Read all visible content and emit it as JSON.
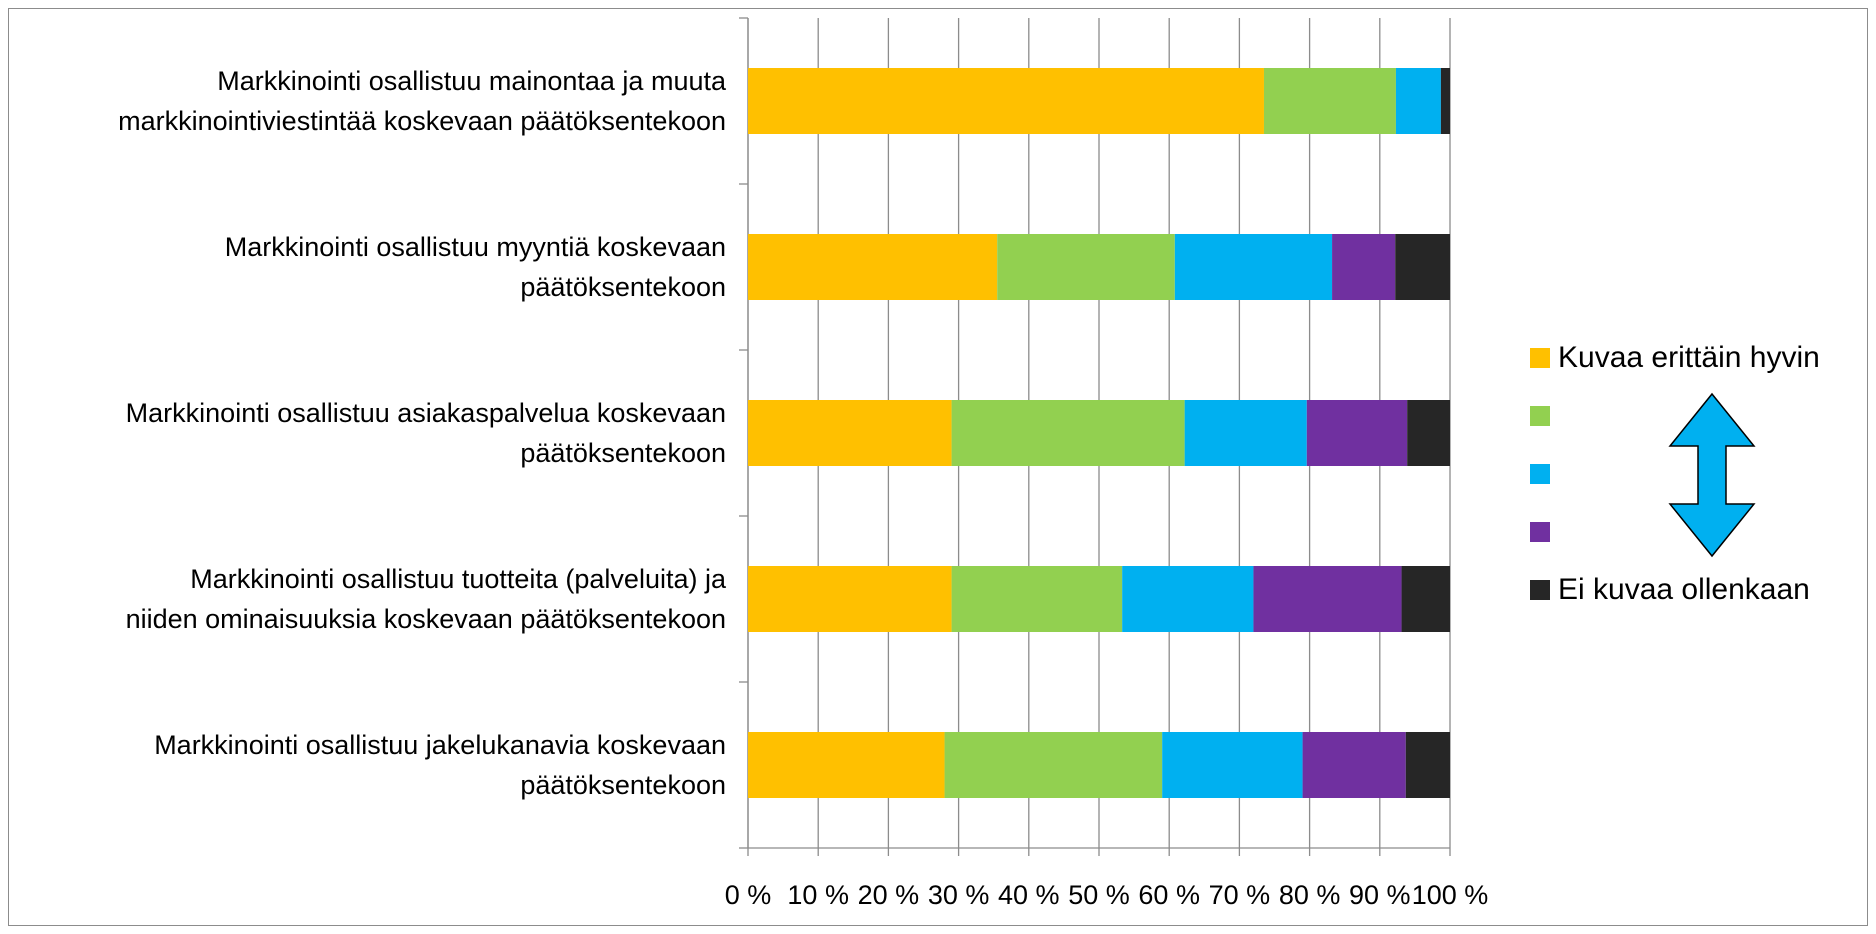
{
  "chart_data": {
    "type": "bar",
    "orientation": "horizontal",
    "stacked": "percent",
    "categories": [
      "Markkinointi osallistuu mainontaa ja muuta markkinointiviestintää koskevaan päätöksentekoon",
      "Markkinointi osallistuu myyntiä koskevaan päätöksentekoon",
      "Markkinointi osallistuu asiakaspalvelua koskevaan päätöksentekoon",
      "Markkinointi osallistuu tuotteita (palveluita) ja niiden ominaisuuksia koskevaan päätöksentekoon",
      "Markkinointi osallistuu jakelukanavia koskevaan päätöksentekoon"
    ],
    "category_lines": [
      [
        "Markkinointi osallistuu mainontaa ja muuta",
        "markkinointiviestintää koskevaan päätöksentekoon"
      ],
      [
        "Markkinointi osallistuu myyntiä koskevaan",
        "päätöksentekoon"
      ],
      [
        "Markkinointi osallistuu asiakaspalvelua koskevaan",
        "päätöksentekoon"
      ],
      [
        "Markkinointi osallistuu tuotteita (palveluita) ja",
        "niiden ominaisuuksia koskevaan päätöksentekoon"
      ],
      [
        "Markkinointi osallistuu jakelukanavia koskevaan",
        "päätöksentekoon"
      ]
    ],
    "series": [
      {
        "name": "Kuvaa erittäin hyvin",
        "color": "#FFC000",
        "values": [
          73.5,
          35.5,
          29,
          29,
          28
        ]
      },
      {
        "name": "",
        "color": "#92D050",
        "values": [
          18.8,
          25.3,
          33.2,
          24.3,
          31
        ]
      },
      {
        "name": "",
        "color": "#00B0F0",
        "values": [
          6.4,
          22.4,
          17.4,
          18.7,
          20
        ]
      },
      {
        "name": "",
        "color": "#7030A0",
        "values": [
          0,
          9,
          14.3,
          21.1,
          14.7
        ]
      },
      {
        "name": "Ei kuvaa ollenkaan",
        "color": "#262626",
        "values": [
          1.3,
          7.8,
          6.1,
          6.9,
          6.3
        ]
      }
    ],
    "x_ticks": [
      "0 %",
      "10 %",
      "20 %",
      "30 %",
      "40 %",
      "50 %",
      "60 %",
      "70 %",
      "80 %",
      "90 %",
      "100 %"
    ],
    "xlim": [
      0,
      100
    ],
    "grid": true,
    "legend_position": "right",
    "legend_arrow": "double-headed-vertical",
    "arrow_color": "#00B0F0"
  }
}
